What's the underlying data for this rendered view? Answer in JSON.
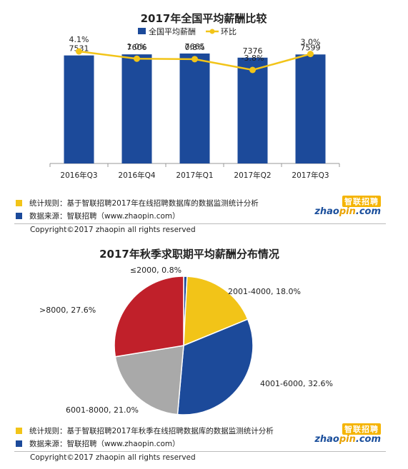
{
  "chart_data": [
    {
      "type": "bar+line",
      "title": "2017年全国平均薪酬比较",
      "categories": [
        "2016年Q3",
        "2016年Q4",
        "2017年Q1",
        "2017年Q2",
        "2017年Q3"
      ],
      "series": [
        {
          "name": "全国平均薪酬",
          "type": "bar",
          "color": "#1c4a9a",
          "values": [
            7531,
            7606,
            7665,
            7376,
            7599
          ]
        },
        {
          "name": "环比",
          "type": "line",
          "color": "#f2c418",
          "values": [
            4.1,
            1.0,
            0.8,
            -3.8,
            3.0
          ],
          "labels": [
            "4.1%",
            "1.0%",
            "0.8%",
            "-3.8%",
            "3.0%"
          ]
        }
      ],
      "legend_position": "top-center",
      "grid": false
    },
    {
      "type": "pie",
      "title": "2017年秋季求职期平均薪酬分布情况",
      "slices": [
        {
          "label": "≤2000, 0.8%",
          "value": 0.8,
          "color": "#1c4a9a"
        },
        {
          "label": "2001-4000, 18.0%",
          "value": 18.0,
          "color": "#f2c418"
        },
        {
          "label": "4001-6000, 32.6%",
          "value": 32.6,
          "color": "#1c4a9a"
        },
        {
          "label": "6001-8000, 21.0%",
          "value": 21.0,
          "color": "#a9a9a9"
        },
        {
          "label": ">8000, 27.6%",
          "value": 27.6,
          "color": "#c0202a"
        }
      ]
    }
  ],
  "notes": {
    "rule": "统计规则：基于智联招聘2017年在线招聘数据库的数据监测统计分析",
    "source": "数据来源：智联招聘（www.zhaopin.com）",
    "copyright": "Copyright©2017 zhaopin all rights reserved"
  },
  "notes2": {
    "rule": "统计规则：基于智联招聘2017年秋季在线招聘数据库的数据监测统计分析",
    "source": "数据来源：智联招聘（www.zhaopin.com）",
    "copyright": "Copyright©2017 zhaopin all rights reserved"
  },
  "logo": {
    "cn": "智联招聘",
    "en_a": "zhao",
    "en_b": "pin",
    "en_c": ".com"
  },
  "colors": {
    "yellow": "#f2c418",
    "blue": "#1c4a9a"
  }
}
